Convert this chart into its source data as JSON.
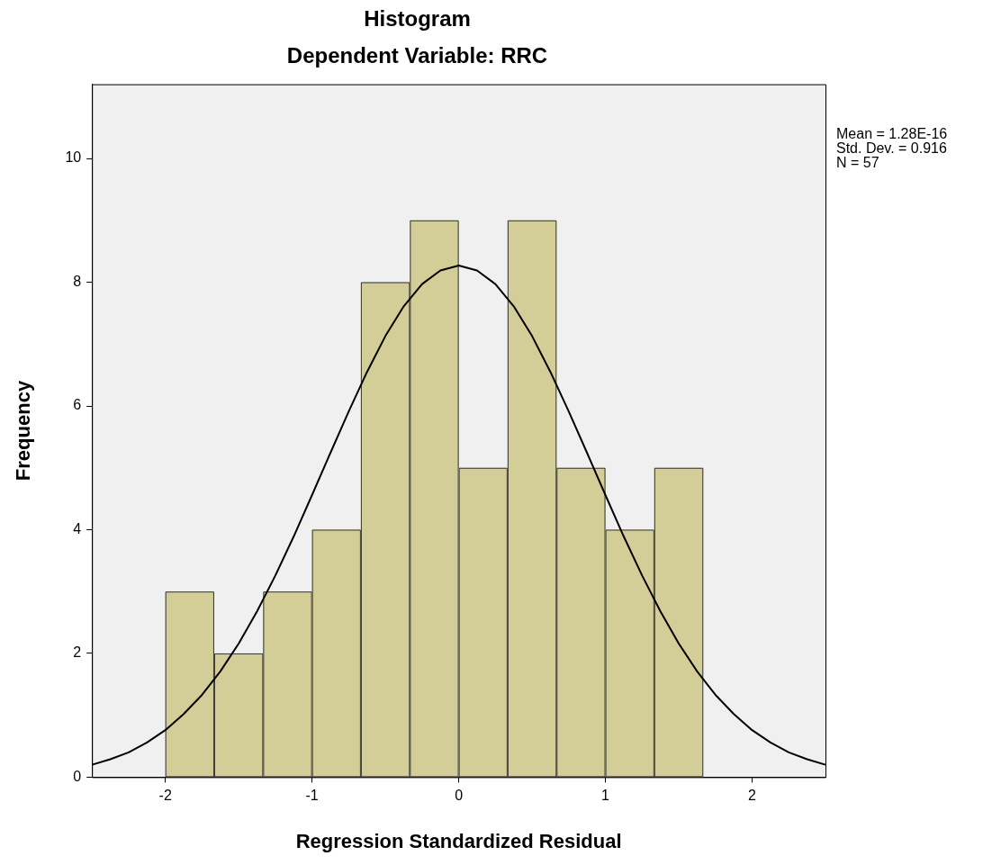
{
  "chart_data": {
    "type": "histogram",
    "title": "Histogram",
    "subtitle": "Dependent Variable: RRC",
    "xlabel": "Regression Standardized Residual",
    "ylabel": "Frequency",
    "bins": [
      -2,
      -1.667,
      -1.333,
      -1,
      -0.667,
      -0.333,
      0,
      0.333,
      0.667,
      1,
      1.333,
      1.667
    ],
    "values": [
      3,
      2,
      3,
      4,
      8,
      9,
      5,
      9,
      5,
      4,
      5
    ],
    "color": "#d3ce97",
    "series": [
      {
        "type": "line",
        "color": "#000000",
        "x": [
          -2.5,
          -2.375,
          -2.25,
          -2.125,
          -2,
          -1.875,
          -1.75,
          -1.625,
          -1.5,
          -1.375,
          -1.25,
          -1.125,
          -1,
          -0.875,
          -0.75,
          -0.625,
          -0.5,
          -0.375,
          -0.25,
          -0.125,
          0,
          0.125,
          0.25,
          0.375,
          0.5,
          0.625,
          0.75,
          0.875,
          1,
          1.125,
          1.25,
          1.375,
          1.5,
          1.625,
          1.75,
          1.875,
          2,
          2.125,
          2.25,
          2.375,
          2.5
        ],
        "values": [
          0.2,
          0.29,
          0.4,
          0.56,
          0.76,
          1.02,
          1.33,
          1.71,
          2.16,
          2.68,
          3.26,
          3.89,
          4.56,
          5.24,
          5.91,
          6.55,
          7.13,
          7.61,
          7.97,
          8.19,
          8.27,
          8.19,
          7.97,
          7.61,
          7.13,
          6.55,
          5.91,
          5.24,
          4.56,
          3.89,
          3.26,
          2.68,
          2.16,
          1.71,
          1.33,
          1.02,
          0.76,
          0.56,
          0.4,
          0.29,
          0.2
        ]
      }
    ],
    "xlim": [
      -2.5,
      2.5
    ],
    "xticks": [
      -2,
      -1,
      0,
      1,
      2
    ],
    "ylim": [
      0,
      11.2
    ],
    "yticks": [
      0,
      2,
      4,
      6,
      8,
      10
    ],
    "annotations": [
      "Mean = 1.28E-16",
      "Std. Dev. = 0.916",
      "N = 57"
    ]
  }
}
